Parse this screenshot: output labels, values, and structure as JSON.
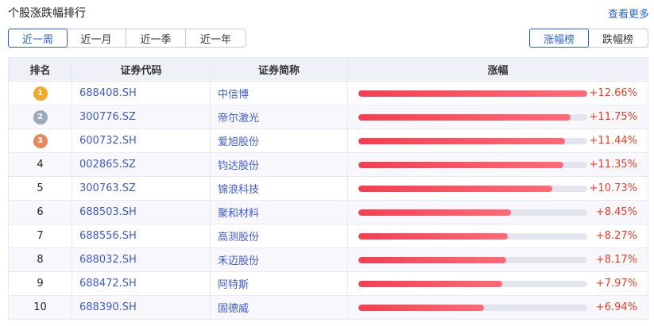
{
  "header": {
    "title": "个股涨跌幅排行",
    "more_link": "查看更多"
  },
  "period_tabs": [
    {
      "label": "近一周",
      "active": true
    },
    {
      "label": "近一月",
      "active": false
    },
    {
      "label": "近一季",
      "active": false
    },
    {
      "label": "近一年",
      "active": false
    }
  ],
  "rank_tabs": [
    {
      "label": "涨幅榜",
      "active": true
    },
    {
      "label": "跌幅榜",
      "active": false
    }
  ],
  "table": {
    "columns": [
      "排名",
      "证券代码",
      "证券简称",
      "涨幅"
    ],
    "max_change": 12.66,
    "medal_colors": [
      "#f0a826",
      "#9aabbd",
      "#e58a58"
    ],
    "rows": [
      {
        "rank": "1",
        "code": "688408.SH",
        "name": "中信博",
        "change": "+12.66%",
        "value": 12.66
      },
      {
        "rank": "2",
        "code": "300776.SZ",
        "name": "帝尔激光",
        "change": "+11.75%",
        "value": 11.75
      },
      {
        "rank": "3",
        "code": "600732.SH",
        "name": "爱旭股份",
        "change": "+11.44%",
        "value": 11.44
      },
      {
        "rank": "4",
        "code": "002865.SZ",
        "name": "钧达股份",
        "change": "+11.35%",
        "value": 11.35
      },
      {
        "rank": "5",
        "code": "300763.SZ",
        "name": "锦浪科技",
        "change": "+10.73%",
        "value": 10.73
      },
      {
        "rank": "6",
        "code": "688503.SH",
        "name": "聚和材料",
        "change": "+8.45%",
        "value": 8.45
      },
      {
        "rank": "7",
        "code": "688556.SH",
        "name": "高测股份",
        "change": "+8.27%",
        "value": 8.27
      },
      {
        "rank": "8",
        "code": "688032.SH",
        "name": "禾迈股份",
        "change": "+8.17%",
        "value": 8.17
      },
      {
        "rank": "9",
        "code": "688472.SH",
        "name": "阿特斯",
        "change": "+7.97%",
        "value": 7.97
      },
      {
        "rank": "10",
        "code": "688390.SH",
        "name": "固德威",
        "change": "+6.94%",
        "value": 6.94
      }
    ]
  }
}
